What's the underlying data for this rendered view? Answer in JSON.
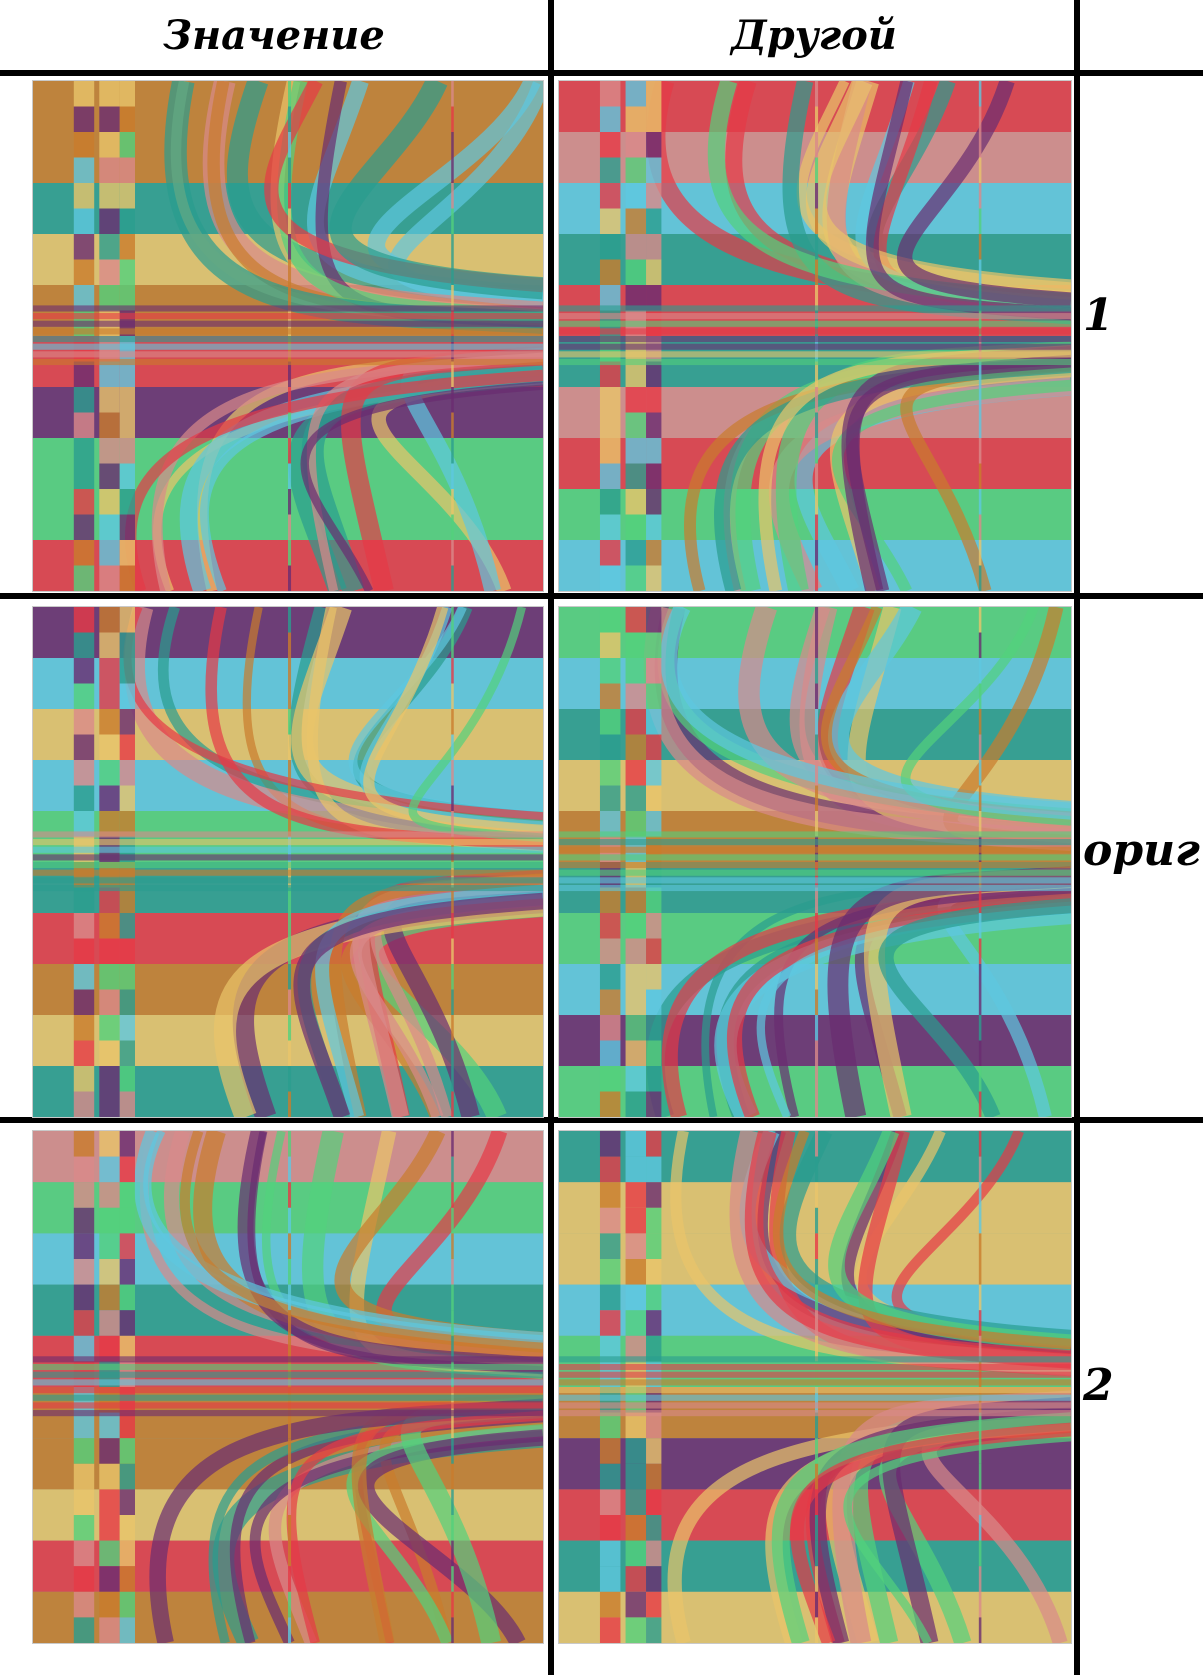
{
  "columns": {
    "left_header": "Значение",
    "right_header": "Другой"
  },
  "rows": [
    {
      "label": "1"
    },
    {
      "label": "ориг"
    },
    {
      "label": "2"
    }
  ],
  "palette": [
    "#2a9d8f",
    "#e63946",
    "#6a2c70",
    "#e9c46a",
    "#52d17c",
    "#5ec8e0",
    "#d98a8a",
    "#c97c2c"
  ]
}
